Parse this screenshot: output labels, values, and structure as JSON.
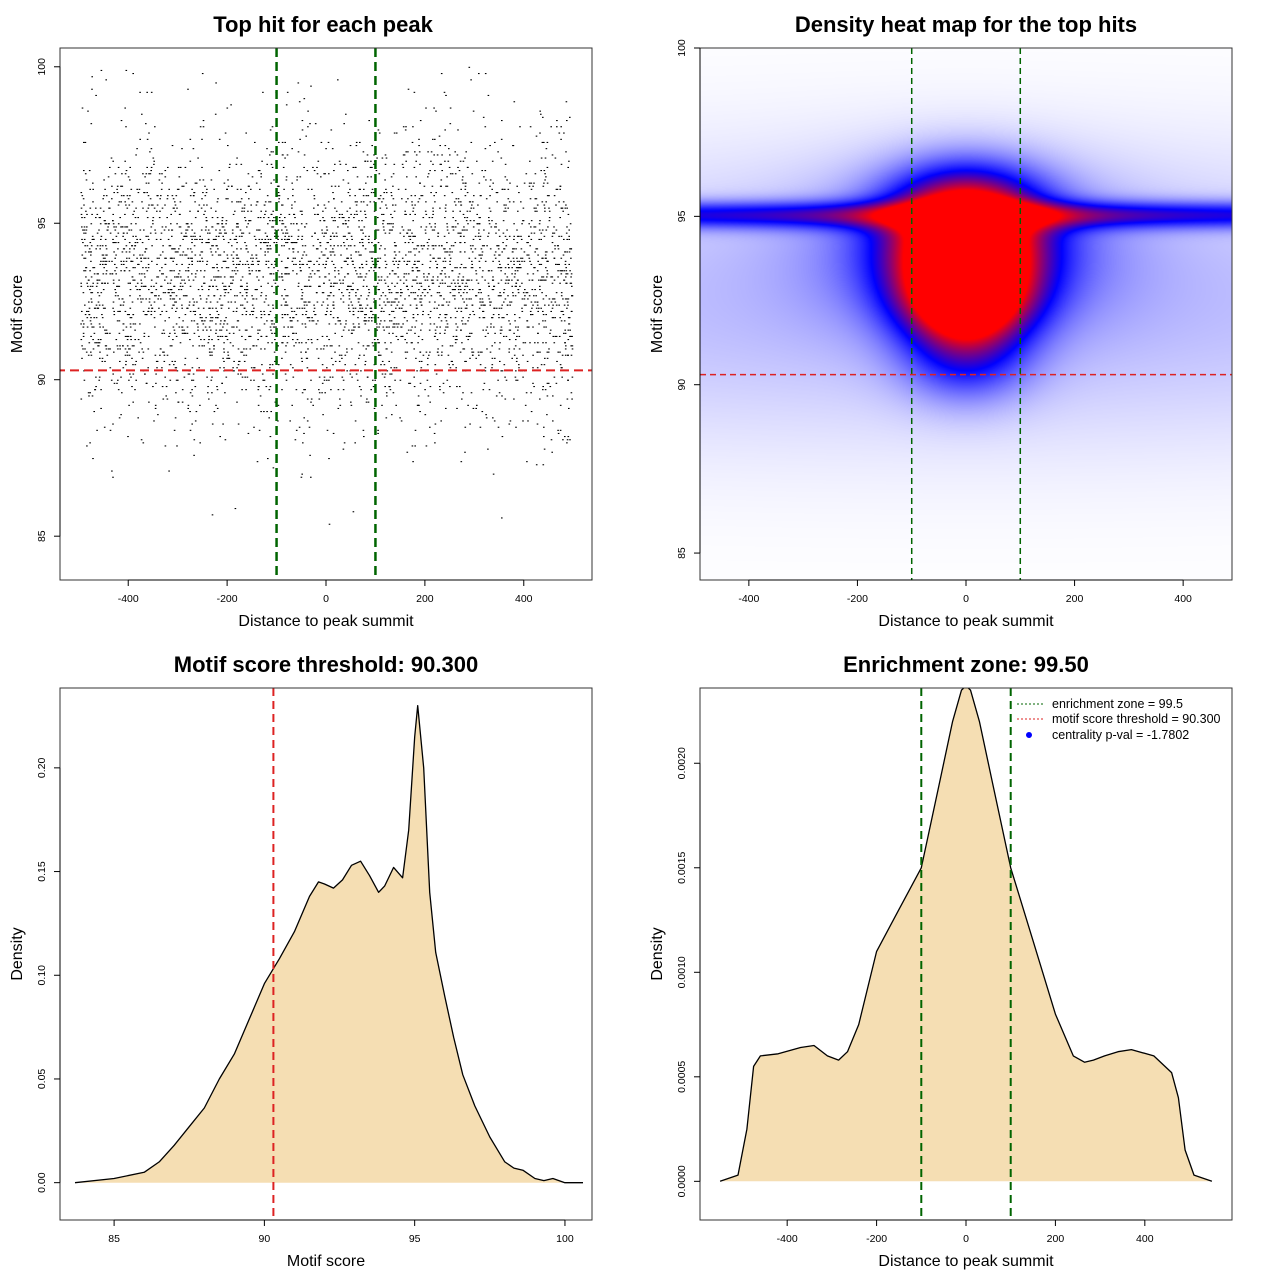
{
  "chart_data": [
    {
      "id": "scatter",
      "type": "scatter",
      "title": "Top hit for each peak",
      "xlabel": "Distance to peak summit",
      "ylabel": "Motif score",
      "xlim": [
        -538,
        538
      ],
      "ylim": [
        83.6,
        100.6
      ],
      "xticks": [
        "-400",
        "-200",
        "0",
        "200",
        "400"
      ],
      "xtick_values": [
        -400,
        -200,
        0,
        200,
        400
      ],
      "yticks": [
        "85",
        "90",
        "95",
        "100"
      ],
      "ytick_values": [
        85,
        90,
        95,
        100
      ],
      "x_range": [
        -497,
        497
      ],
      "score_mean": 93.3,
      "score_sd": 2.3,
      "n_points_rendered": 4200,
      "vlines": [
        -100,
        100
      ],
      "hline": 90.3,
      "colors": {
        "points": "#000000",
        "vline": "#006400",
        "hline": "#dd2222"
      }
    },
    {
      "id": "heatmap",
      "type": "heatmap",
      "title": "Density heat map for the top hits",
      "xlabel": "Distance to peak summit",
      "ylabel": "Motif score",
      "xlim": [
        -490,
        490
      ],
      "ylim": [
        84.2,
        100.0
      ],
      "xticks": [
        "-400",
        "-200",
        "0",
        "200",
        "400"
      ],
      "xtick_values": [
        -400,
        -200,
        0,
        200,
        400
      ],
      "yticks": [
        "85",
        "90",
        "95",
        "100"
      ],
      "ytick_values": [
        85,
        90,
        95,
        100
      ],
      "density_blobs": [
        {
          "x": 0,
          "y": 95.0,
          "sx": 95,
          "sy": 1.0,
          "w": 1.0
        },
        {
          "x": 0,
          "y": 93.4,
          "sx": 90,
          "sy": 0.9,
          "w": 0.85
        },
        {
          "x": 0,
          "y": 92.4,
          "sx": 80,
          "sy": 0.8,
          "w": 0.75
        },
        {
          "x": 0,
          "y": 91.0,
          "sx": 80,
          "sy": 1.0,
          "w": 0.45
        },
        {
          "x": 0,
          "y": 94.0,
          "sx": 180,
          "sy": 1.6,
          "w": 0.35
        },
        {
          "x": 0,
          "y": 95.05,
          "sx": 1400,
          "sy": 0.28,
          "w": 0.55
        },
        {
          "x": 0,
          "y": 92.5,
          "sx": 1200,
          "sy": 3.0,
          "w": 0.16
        }
      ],
      "vlines": [
        -100,
        100
      ],
      "hline": 90.3,
      "colors": {
        "low": "#ffffff",
        "mid": "#0000ff",
        "high": "#ff0000",
        "vline": "#006400",
        "hline": "#dd2222"
      }
    },
    {
      "id": "score-density",
      "type": "area",
      "title": "Motif score threshold: 90.300",
      "xlabel": "Motif score",
      "ylabel": "Density",
      "xlim": [
        83.2,
        100.9
      ],
      "ylim": [
        -0.018,
        0.2385
      ],
      "xticks": [
        "85",
        "90",
        "95",
        "100"
      ],
      "xtick_values": [
        85,
        90,
        95,
        100
      ],
      "yticks": [
        "0.00",
        "0.05",
        "0.10",
        "0.15",
        "0.20"
      ],
      "ytick_values": [
        0,
        0.05,
        0.1,
        0.15,
        0.2
      ],
      "x": [
        83.7,
        85.0,
        86.0,
        86.5,
        87.0,
        87.5,
        88.0,
        88.5,
        89.0,
        89.5,
        90.0,
        90.5,
        91.0,
        91.5,
        91.8,
        92.0,
        92.3,
        92.6,
        92.9,
        93.2,
        93.5,
        93.8,
        94.0,
        94.3,
        94.6,
        94.8,
        95.0,
        95.1,
        95.3,
        95.5,
        95.7,
        96.0,
        96.3,
        96.6,
        97.0,
        97.5,
        98.0,
        98.3,
        98.6,
        99.0,
        99.3,
        99.6,
        100.0,
        100.6
      ],
      "y": [
        0,
        0.002,
        0.005,
        0.01,
        0.018,
        0.027,
        0.036,
        0.05,
        0.062,
        0.079,
        0.096,
        0.108,
        0.121,
        0.138,
        0.145,
        0.144,
        0.142,
        0.146,
        0.153,
        0.155,
        0.148,
        0.14,
        0.143,
        0.152,
        0.147,
        0.17,
        0.215,
        0.23,
        0.2,
        0.14,
        0.111,
        0.09,
        0.07,
        0.052,
        0.037,
        0.022,
        0.01,
        0.007,
        0.006,
        0.002,
        0.001,
        0.002,
        0,
        0
      ],
      "vline": 90.3,
      "colors": {
        "fill": "#f5deb3",
        "line": "#000000",
        "vline": "#dd2222"
      }
    },
    {
      "id": "distance-density",
      "type": "area",
      "title": "Enrichment zone: 99.50",
      "xlabel": "Distance to peak summit",
      "ylabel": "Density",
      "xlim": [
        -595,
        595
      ],
      "ylim": [
        -0.000185,
        0.00236
      ],
      "xticks": [
        "-400",
        "-200",
        "0",
        "200",
        "400"
      ],
      "xtick_values": [
        -400,
        -200,
        0,
        200,
        400
      ],
      "yticks": [
        "0.0000",
        "0.0005",
        "0.0010",
        "0.0015",
        "0.0020"
      ],
      "ytick_values": [
        0,
        0.0005,
        0.001,
        0.0015,
        0.002
      ],
      "x": [
        -550,
        -510,
        -490,
        -475,
        -460,
        -420,
        -370,
        -340,
        -310,
        -285,
        -265,
        -240,
        -200,
        -150,
        -100,
        -60,
        -30,
        -10,
        0,
        10,
        30,
        60,
        100,
        150,
        200,
        240,
        265,
        285,
        310,
        340,
        370,
        420,
        460,
        475,
        490,
        510,
        550
      ],
      "y": [
        0,
        3e-05,
        0.00025,
        0.00055,
        0.0006,
        0.00061,
        0.00064,
        0.00065,
        0.0006,
        0.00058,
        0.00062,
        0.00075,
        0.0011,
        0.0013,
        0.0015,
        0.0019,
        0.0022,
        0.00235,
        0.00237,
        0.00235,
        0.0022,
        0.0019,
        0.0015,
        0.00115,
        0.0008,
        0.0006,
        0.00057,
        0.00058,
        0.0006,
        0.00062,
        0.00063,
        0.0006,
        0.00052,
        0.0004,
        0.00015,
        3e-05,
        0
      ],
      "vlines": [
        -100,
        100
      ],
      "colors": {
        "fill": "#f5deb3",
        "line": "#000000",
        "vline": "#006400",
        "hline": "#dd2222",
        "dot": "#0000ff"
      },
      "legend": {
        "position": "top-right",
        "entries": [
          "enrichment zone = 99.5",
          "motif score threshold = 90.300",
          "centrality p-val = -1.7802"
        ]
      }
    }
  ]
}
